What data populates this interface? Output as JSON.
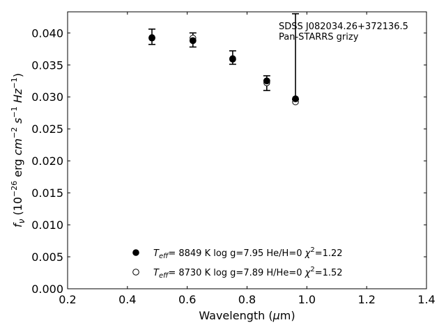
{
  "chart_data": {
    "type": "scatter",
    "annotation": {
      "line1": "SDSS J082034.26+372136.5",
      "line2": "Pan-STARRS grizy"
    },
    "xlabel": {
      "main": "Wavelength (",
      "unit_greek": "μ",
      "unit_rest": "m)"
    },
    "ylabel_text": "f_ν (10^-26 erg cm^-2 s^-1 Hz^-1)",
    "xlim": [
      0.2,
      1.4
    ],
    "ylim": [
      0.0,
      0.0433
    ],
    "xticks": [
      0.2,
      0.4,
      0.6,
      0.8,
      1.0,
      1.2,
      1.4
    ],
    "xtick_labels": [
      "0.2",
      "0.4",
      "0.6",
      "0.8",
      "1.0",
      "1.2",
      "1.4"
    ],
    "yticks": [
      0.0,
      0.005,
      0.01,
      0.015,
      0.02,
      0.025,
      0.03,
      0.035,
      0.04
    ],
    "ytick_labels": [
      "0.000",
      "0.005",
      "0.010",
      "0.015",
      "0.020",
      "0.025",
      "0.030",
      "0.035",
      "0.040"
    ],
    "observed": {
      "x": [
        0.482,
        0.619,
        0.752,
        0.866,
        0.962
      ],
      "y": [
        0.0393,
        0.0389,
        0.0361,
        0.0321,
        0.0298
      ],
      "err_low": [
        0.0382,
        0.0378,
        0.0351,
        0.031,
        0.0296
      ],
      "err_high": [
        0.0406,
        0.04,
        0.0372,
        0.0333,
        0.043
      ]
    },
    "series": [
      {
        "marker": "filled",
        "x": [
          0.482,
          0.619,
          0.752,
          0.866,
          0.962
        ],
        "y": [
          0.0392,
          0.0388,
          0.0359,
          0.0325,
          0.0297
        ]
      },
      {
        "marker": "open",
        "x": [
          0.482,
          0.619,
          0.752,
          0.866,
          0.962
        ],
        "y": [
          0.0393,
          0.0392,
          0.036,
          0.0322,
          0.0292
        ]
      }
    ],
    "legend": {
      "placement": "lower-center",
      "entries": [
        {
          "marker": "filled",
          "teff": "8849 K",
          "logg": "log g=7.95",
          "comp": "He/H=0",
          "chi2": "=1.22"
        },
        {
          "marker": "open",
          "teff": "8730 K",
          "logg": "log g=7.89",
          "comp": "H/He=0",
          "chi2": "=1.52"
        }
      ],
      "teff_prefix": "T",
      "teff_sub": "eff",
      "chi_symbol": "χ",
      "chi_sup": "2"
    }
  }
}
